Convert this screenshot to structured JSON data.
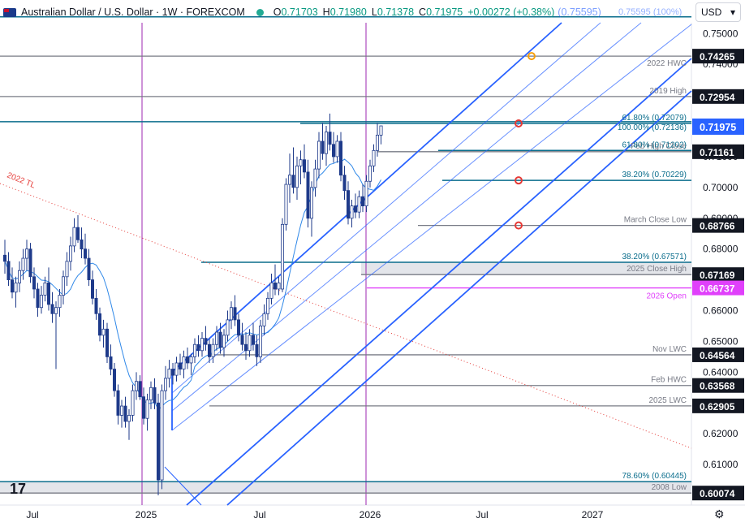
{
  "header": {
    "symbol": "Australian Dollar / U.S. Dollar · 1W · FOREXCOM",
    "open_label": "O",
    "open": "0.71703",
    "high_label": "H",
    "high": "0.71980",
    "low_label": "L",
    "low": "0.71378",
    "close_label": "C",
    "close": "0.71975",
    "change": "+0.00272 (+0.38%)",
    "fib_readout": "(0.75595)",
    "currency": "USD"
  },
  "colors": {
    "up": "#089981",
    "down": "#2962ff",
    "candle": "#1e3a8a",
    "channel": "#2962ff",
    "fib": "#0a6d8c",
    "level": "#131722",
    "ma": "#2f88e8",
    "trendline": "#e53935",
    "marker": "#e53935",
    "target": "#f59e0b",
    "open_tag": "#e040fb",
    "price_tag": "#2962ff"
  },
  "chart_data": {
    "type": "candlestick",
    "title": "Australian Dollar / U.S. Dollar · 1W · FOREXCOM",
    "ylim": [
      0.6,
      0.7535
    ],
    "x_ticks": [
      "Jul",
      "2025",
      "Jul",
      "2026",
      "Jul",
      "2027"
    ],
    "y_ticks": [
      "0.75000",
      "0.74000",
      "0.73000",
      "0.72000",
      "0.71000",
      "0.70000",
      "0.69000",
      "0.68000",
      "0.67000",
      "0.66000",
      "0.65000",
      "0.64000",
      "0.63000",
      "0.62000",
      "0.61000",
      "0.60000"
    ],
    "last_price": 0.71975,
    "levels": [
      {
        "label": "0.75595 (100%)",
        "value": 0.75595,
        "tag": "",
        "kind": "fib-top"
      },
      {
        "label": "",
        "value": 0.74265,
        "tag": "0.74265",
        "kind": "level"
      },
      {
        "label": "2022 HWC",
        "value": 0.7427,
        "tag": "",
        "kind": "note"
      },
      {
        "label": "2019 High",
        "value": 0.72954,
        "tag": "0.72954",
        "kind": "level"
      },
      {
        "label": "61.80% (0.72079)",
        "value": 0.72079,
        "tag": "",
        "kind": "fib"
      },
      {
        "label": "100.00% (0.72136)",
        "value": 0.72136,
        "tag": "",
        "kind": "fib"
      },
      {
        "label": "Feb High Close",
        "value": 0.71161,
        "tag": "0.71161",
        "kind": "level"
      },
      {
        "label": "61.80% (0.71202)",
        "value": 0.71202,
        "tag": "",
        "kind": "fib"
      },
      {
        "label": "38.20% (0.70229)",
        "value": 0.70229,
        "tag": "",
        "kind": "fib"
      },
      {
        "label": "March Close Low",
        "value": 0.68766,
        "tag": "0.68766",
        "kind": "level"
      },
      {
        "label": "38.20% (0.67571)",
        "value": 0.67571,
        "tag": "",
        "kind": "fib"
      },
      {
        "label": "2025 Close High",
        "value": 0.67169,
        "tag": "0.67169",
        "kind": "level"
      },
      {
        "label": "2026 Open",
        "value": 0.66737,
        "tag": "0.66737",
        "kind": "open"
      },
      {
        "label": "Nov LWC",
        "value": 0.64564,
        "tag": "0.64564",
        "kind": "level"
      },
      {
        "label": "Feb HWC",
        "value": 0.63568,
        "tag": "0.63568",
        "kind": "level"
      },
      {
        "label": "2025 LWC",
        "value": 0.62905,
        "tag": "0.62905",
        "kind": "level"
      },
      {
        "label": "78.60% (0.60445)",
        "value": 0.60445,
        "tag": "",
        "kind": "fib"
      },
      {
        "label": "2008 Low",
        "value": 0.60074,
        "tag": "0.60074",
        "kind": "level"
      }
    ],
    "trendline_label": "2022 TL",
    "candles": [
      [
        0.678,
        0.683,
        0.672,
        0.676
      ],
      [
        0.676,
        0.679,
        0.668,
        0.67
      ],
      [
        0.67,
        0.674,
        0.664,
        0.666
      ],
      [
        0.666,
        0.671,
        0.661,
        0.669
      ],
      [
        0.669,
        0.676,
        0.666,
        0.673
      ],
      [
        0.673,
        0.68,
        0.67,
        0.677
      ],
      [
        0.677,
        0.683,
        0.673,
        0.68
      ],
      [
        0.68,
        0.682,
        0.669,
        0.671
      ],
      [
        0.671,
        0.674,
        0.664,
        0.667
      ],
      [
        0.667,
        0.669,
        0.658,
        0.661
      ],
      [
        0.661,
        0.668,
        0.659,
        0.665
      ],
      [
        0.665,
        0.671,
        0.663,
        0.669
      ],
      [
        0.669,
        0.674,
        0.66,
        0.662
      ],
      [
        0.662,
        0.666,
        0.656,
        0.659
      ],
      [
        0.659,
        0.663,
        0.641,
        0.661
      ],
      [
        0.661,
        0.667,
        0.658,
        0.665
      ],
      [
        0.665,
        0.673,
        0.662,
        0.671
      ],
      [
        0.671,
        0.679,
        0.668,
        0.676
      ],
      [
        0.676,
        0.684,
        0.673,
        0.681
      ],
      [
        0.681,
        0.69,
        0.679,
        0.687
      ],
      [
        0.687,
        0.691,
        0.682,
        0.683
      ],
      [
        0.683,
        0.687,
        0.677,
        0.68
      ],
      [
        0.68,
        0.685,
        0.675,
        0.677
      ],
      [
        0.677,
        0.68,
        0.668,
        0.67
      ],
      [
        0.67,
        0.673,
        0.662,
        0.664
      ],
      [
        0.664,
        0.667,
        0.657,
        0.659
      ],
      [
        0.659,
        0.661,
        0.65,
        0.652
      ],
      [
        0.652,
        0.657,
        0.648,
        0.654
      ],
      [
        0.654,
        0.656,
        0.643,
        0.645
      ],
      [
        0.645,
        0.649,
        0.639,
        0.641
      ],
      [
        0.641,
        0.643,
        0.632,
        0.634
      ],
      [
        0.634,
        0.636,
        0.623,
        0.626
      ],
      [
        0.626,
        0.631,
        0.622,
        0.629
      ],
      [
        0.629,
        0.632,
        0.622,
        0.624
      ],
      [
        0.624,
        0.628,
        0.618,
        0.626
      ],
      [
        0.626,
        0.636,
        0.624,
        0.634
      ],
      [
        0.634,
        0.64,
        0.631,
        0.637
      ],
      [
        0.637,
        0.639,
        0.631,
        0.632
      ],
      [
        0.632,
        0.635,
        0.623,
        0.625
      ],
      [
        0.625,
        0.633,
        0.621,
        0.631
      ],
      [
        0.631,
        0.637,
        0.628,
        0.635
      ],
      [
        0.635,
        0.638,
        0.628,
        0.63
      ],
      [
        0.63,
        0.633,
        0.6,
        0.605
      ],
      [
        0.605,
        0.636,
        0.602,
        0.634
      ],
      [
        0.634,
        0.642,
        0.631,
        0.638
      ],
      [
        0.638,
        0.644,
        0.635,
        0.641
      ],
      [
        0.641,
        0.643,
        0.636,
        0.639
      ],
      [
        0.639,
        0.645,
        0.637,
        0.643
      ],
      [
        0.643,
        0.646,
        0.639,
        0.641
      ],
      [
        0.641,
        0.647,
        0.638,
        0.645
      ],
      [
        0.645,
        0.648,
        0.641,
        0.643
      ],
      [
        0.643,
        0.646,
        0.639,
        0.645
      ],
      [
        0.645,
        0.651,
        0.643,
        0.649
      ],
      [
        0.649,
        0.652,
        0.645,
        0.647
      ],
      [
        0.647,
        0.653,
        0.645,
        0.651
      ],
      [
        0.651,
        0.655,
        0.647,
        0.649
      ],
      [
        0.649,
        0.651,
        0.643,
        0.645
      ],
      [
        0.645,
        0.651,
        0.643,
        0.649
      ],
      [
        0.649,
        0.655,
        0.647,
        0.653
      ],
      [
        0.653,
        0.656,
        0.646,
        0.648
      ],
      [
        0.648,
        0.654,
        0.645,
        0.652
      ],
      [
        0.652,
        0.66,
        0.65,
        0.657
      ],
      [
        0.657,
        0.663,
        0.654,
        0.661
      ],
      [
        0.661,
        0.665,
        0.655,
        0.657
      ],
      [
        0.657,
        0.659,
        0.65,
        0.652
      ],
      [
        0.652,
        0.656,
        0.647,
        0.649
      ],
      [
        0.649,
        0.653,
        0.644,
        0.647
      ],
      [
        0.647,
        0.654,
        0.645,
        0.652
      ],
      [
        0.652,
        0.656,
        0.647,
        0.649
      ],
      [
        0.649,
        0.652,
        0.642,
        0.645
      ],
      [
        0.645,
        0.657,
        0.643,
        0.655
      ],
      [
        0.655,
        0.662,
        0.652,
        0.659
      ],
      [
        0.659,
        0.666,
        0.657,
        0.664
      ],
      [
        0.664,
        0.672,
        0.662,
        0.669
      ],
      [
        0.669,
        0.675,
        0.665,
        0.667
      ],
      [
        0.667,
        0.671,
        0.665,
        0.669
      ],
      [
        0.667,
        0.69,
        0.666,
        0.688
      ],
      [
        0.688,
        0.703,
        0.686,
        0.701
      ],
      [
        0.701,
        0.711,
        0.695,
        0.704
      ],
      [
        0.704,
        0.713,
        0.698,
        0.7
      ],
      [
        0.7,
        0.71,
        0.696,
        0.707
      ],
      [
        0.707,
        0.712,
        0.701,
        0.709
      ],
      [
        0.709,
        0.714,
        0.703,
        0.705
      ],
      [
        0.705,
        0.709,
        0.687,
        0.69
      ],
      [
        0.69,
        0.702,
        0.684,
        0.7
      ],
      [
        0.7,
        0.709,
        0.697,
        0.706
      ],
      [
        0.706,
        0.718,
        0.703,
        0.715
      ],
      [
        0.715,
        0.721,
        0.709,
        0.711
      ],
      [
        0.711,
        0.72,
        0.707,
        0.718
      ],
      [
        0.718,
        0.724,
        0.712,
        0.714
      ],
      [
        0.714,
        0.718,
        0.708,
        0.71
      ],
      [
        0.71,
        0.717,
        0.708,
        0.715
      ],
      [
        0.715,
        0.718,
        0.702,
        0.704
      ],
      [
        0.704,
        0.707,
        0.696,
        0.699
      ],
      [
        0.699,
        0.702,
        0.688,
        0.69
      ],
      [
        0.69,
        0.696,
        0.687,
        0.694
      ],
      [
        0.694,
        0.698,
        0.69,
        0.692
      ],
      [
        0.692,
        0.699,
        0.69,
        0.697
      ],
      [
        0.697,
        0.701,
        0.692,
        0.694
      ],
      [
        0.694,
        0.704,
        0.692,
        0.702
      ],
      [
        0.702,
        0.709,
        0.7,
        0.707
      ],
      [
        0.707,
        0.714,
        0.705,
        0.712
      ],
      [
        0.712,
        0.721,
        0.71,
        0.717
      ],
      [
        0.717,
        0.72,
        0.714,
        0.72
      ]
    ]
  }
}
